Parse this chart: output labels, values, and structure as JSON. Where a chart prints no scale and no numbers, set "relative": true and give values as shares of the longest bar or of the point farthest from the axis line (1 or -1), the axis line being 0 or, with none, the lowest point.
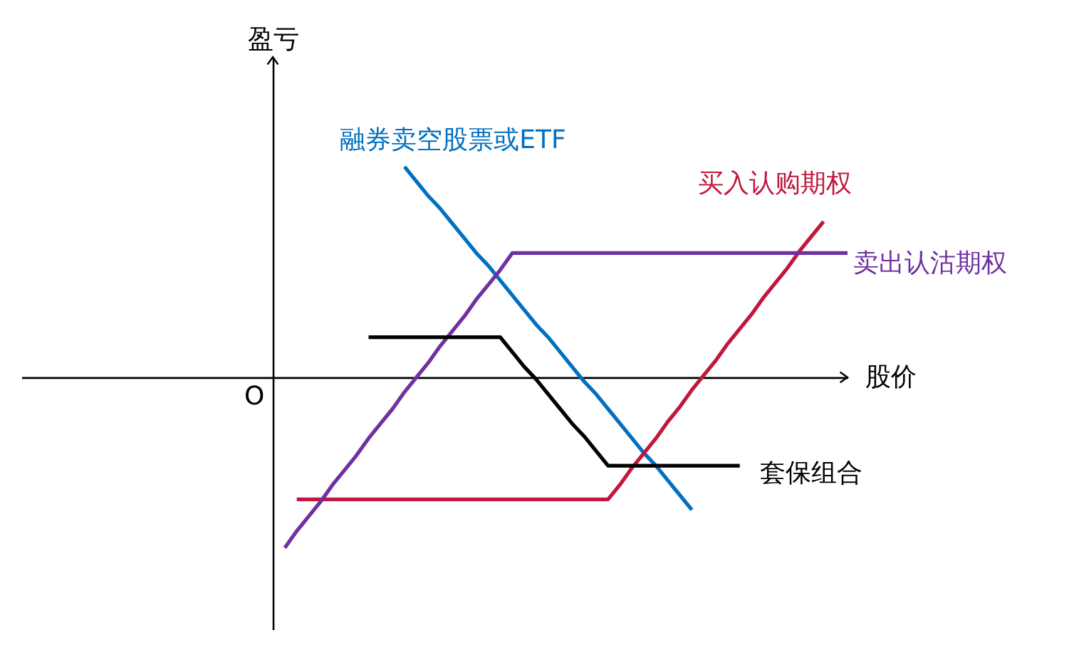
{
  "chart_data": {
    "type": "line",
    "relative": true,
    "xlabel": "股价",
    "ylabel": "盈亏",
    "annotations": [
      "O"
    ],
    "categories": [
      null,
      null,
      null,
      null,
      null,
      null,
      null,
      null,
      null,
      null,
      null,
      null,
      null,
      null,
      null,
      null,
      null,
      null,
      null,
      null,
      null,
      null,
      null,
      null,
      null,
      null,
      null,
      null,
      null,
      null,
      null,
      null,
      null,
      null,
      null,
      null,
      null,
      null,
      null,
      null,
      null,
      null,
      null,
      null,
      null,
      null,
      null,
      null,
      null,
      null,
      null,
      null,
      null,
      null,
      null,
      null,
      null,
      null,
      null,
      null,
      null,
      null,
      null,
      null,
      null,
      null,
      null,
      null,
      null,
      null
    ],
    "series": [
      {
        "name": "融券卖空股票或ETF",
        "color": "#0070c0",
        "values": [
          null,
          null,
          null,
          null,
          null,
          null,
          null,
          null,
          null,
          null,
          null,
          null,
          null,
          null,
          null,
          null,
          null,
          null,
          null,
          null,
          null,
          null,
          null,
          null,
          null,
          null,
          null,
          null,
          null,
          null,
          null,
          null,
          1,
          0.93,
          0.86,
          0.8,
          0.73,
          0.66,
          0.59,
          0.53,
          0.46,
          0.39,
          0.32,
          0.25,
          0.19,
          0.12,
          0.05,
          -0.02,
          -0.08,
          -0.15,
          -0.22,
          -0.29,
          -0.36,
          -0.42,
          -0.49,
          -0.56,
          -0.63,
          null,
          null,
          null,
          null,
          null,
          null,
          null,
          null,
          null,
          null,
          null,
          null,
          null
        ]
      },
      {
        "name": "买入认购期权",
        "color": "#c0183c",
        "values": [
          null,
          null,
          null,
          null,
          null,
          null,
          null,
          null,
          null,
          null,
          null,
          null,
          null,
          null,
          null,
          null,
          null,
          null,
          null,
          null,
          null,
          null,
          null,
          -0.58,
          -0.58,
          -0.58,
          -0.58,
          -0.58,
          -0.58,
          -0.58,
          -0.58,
          -0.58,
          -0.58,
          -0.58,
          -0.58,
          -0.58,
          -0.58,
          -0.58,
          -0.58,
          -0.58,
          -0.58,
          -0.58,
          -0.58,
          -0.58,
          -0.58,
          -0.58,
          -0.58,
          -0.58,
          -0.58,
          -0.58,
          -0.51,
          -0.43,
          -0.36,
          -0.29,
          -0.21,
          -0.14,
          -0.06,
          0.01,
          0.08,
          0.16,
          0.23,
          0.3,
          0.38,
          0.45,
          0.52,
          0.6,
          0.67,
          0.74,
          null,
          null
        ]
      },
      {
        "name": "卖出认沽期权",
        "color": "#7030a0",
        "values": [
          null,
          null,
          null,
          null,
          null,
          null,
          null,
          null,
          null,
          null,
          null,
          null,
          null,
          null,
          null,
          null,
          null,
          null,
          null,
          null,
          null,
          null,
          -0.81,
          -0.73,
          -0.66,
          -0.59,
          -0.51,
          -0.44,
          -0.37,
          -0.29,
          -0.22,
          -0.15,
          -0.07,
          0,
          0.07,
          0.15,
          0.22,
          0.29,
          0.37,
          0.44,
          0.51,
          0.59,
          0.59,
          0.59,
          0.59,
          0.59,
          0.59,
          0.59,
          0.59,
          0.59,
          0.59,
          0.59,
          0.59,
          0.59,
          0.59,
          0.59,
          0.59,
          0.59,
          0.59,
          0.59,
          0.59,
          0.59,
          0.59,
          0.59,
          0.59,
          0.59,
          0.59,
          0.59,
          0.59,
          0.59
        ]
      },
      {
        "name": "套保组合",
        "color": "#000000",
        "values": [
          null,
          null,
          null,
          null,
          null,
          null,
          null,
          null,
          null,
          null,
          null,
          null,
          null,
          null,
          null,
          null,
          null,
          null,
          null,
          null,
          null,
          null,
          null,
          null,
          null,
          null,
          null,
          null,
          null,
          0.19,
          0.19,
          0.19,
          0.19,
          0.19,
          0.19,
          0.19,
          0.19,
          0.19,
          0.19,
          0.19,
          0.19,
          0.12,
          0.05,
          -0.01,
          -0.08,
          -0.15,
          -0.22,
          -0.28,
          -0.35,
          -0.42,
          -0.42,
          -0.42,
          -0.42,
          -0.42,
          -0.42,
          -0.42,
          -0.42,
          -0.42,
          -0.42,
          -0.42,
          -0.42,
          null,
          null,
          null,
          null,
          null,
          null,
          null,
          null,
          null
        ]
      }
    ]
  }
}
